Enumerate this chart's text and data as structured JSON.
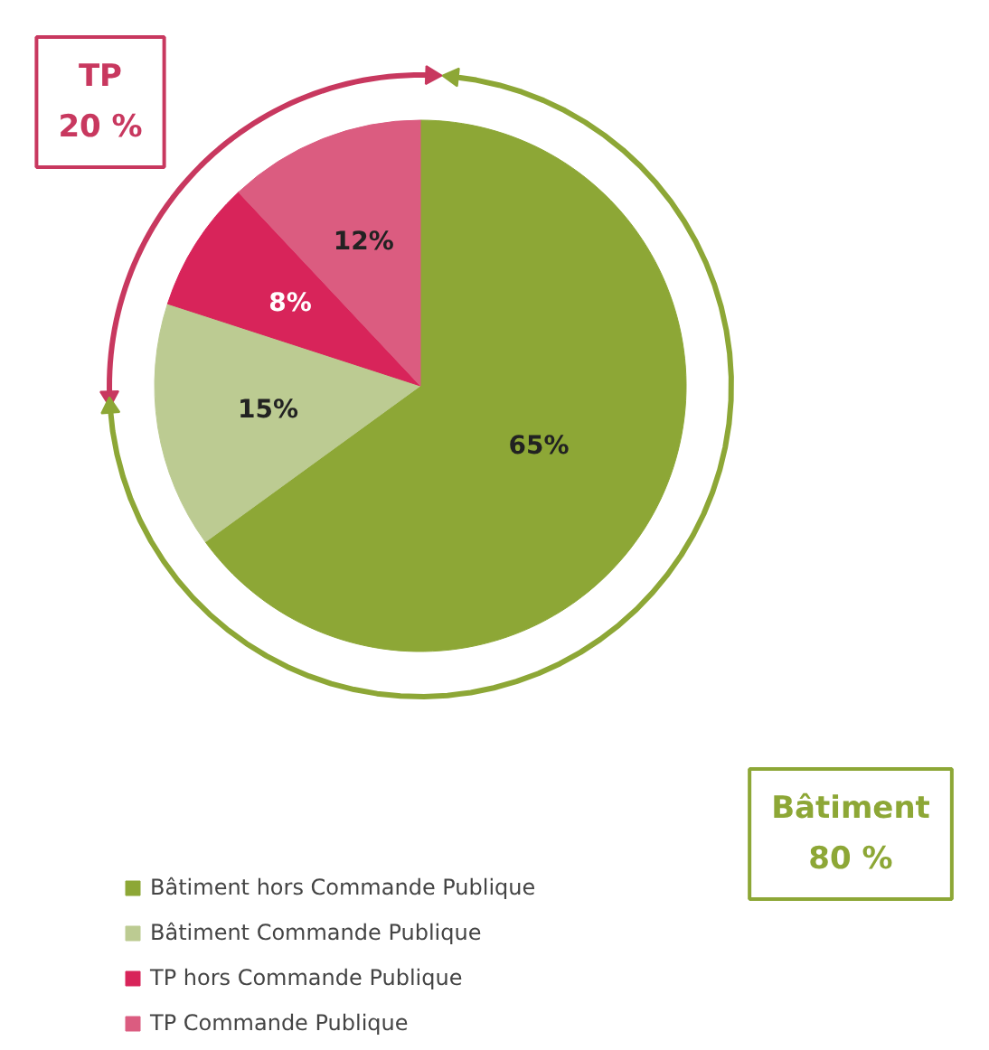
{
  "chart_data": {
    "type": "pie",
    "categories": [
      "Bâtiment hors Commande Publique",
      "Bâtiment Commande Publique",
      "TP hors Commande Publique",
      "TP Commande Publique"
    ],
    "values": [
      65,
      15,
      8,
      12
    ],
    "colors": [
      "#8da736",
      "#bccb92",
      "#d8245a",
      "#db5c80"
    ],
    "value_labels": [
      "65%",
      "15%",
      "8%",
      "12%"
    ],
    "annotations": [
      "TP\n20 %",
      "Bâtiment\n80 %"
    ],
    "legend": "bottom"
  }
}
